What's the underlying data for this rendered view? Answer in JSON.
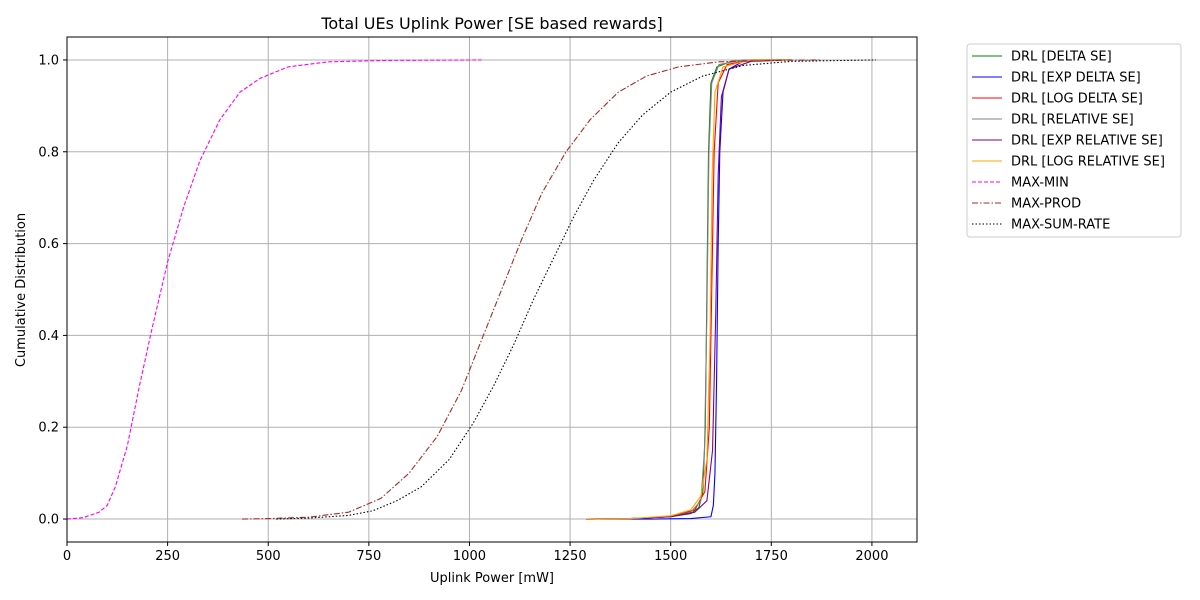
{
  "chart_data": {
    "type": "line",
    "title": "Total UEs Uplink Power [SE based rewards]",
    "xlabel": "Uplink Power [mW]",
    "ylabel": "Cumulative Distribution",
    "xlim": [
      0,
      2112
    ],
    "ylim": [
      -0.05,
      1.05
    ],
    "xticks": [
      0,
      250,
      500,
      750,
      1000,
      1250,
      1500,
      1750,
      2000
    ],
    "yticks": [
      0.0,
      0.2,
      0.4,
      0.6,
      0.8,
      1.0
    ],
    "xtick_labels": [
      "0",
      "250",
      "500",
      "750",
      "1000",
      "1250",
      "1500",
      "1750",
      "2000"
    ],
    "ytick_labels": [
      "0.0",
      "0.2",
      "0.4",
      "0.6",
      "0.8",
      "1.0"
    ],
    "grid": true,
    "legend_position": "outside-right-top",
    "series": [
      {
        "name": "DRL [DELTA SE]",
        "color": "#008000",
        "dash": "solid",
        "points": [
          [
            1290,
            0
          ],
          [
            1400,
            0.001
          ],
          [
            1500,
            0.005
          ],
          [
            1550,
            0.012
          ],
          [
            1570,
            0.025
          ],
          [
            1580,
            0.06
          ],
          [
            1586,
            0.2
          ],
          [
            1590,
            0.5
          ],
          [
            1594,
            0.8
          ],
          [
            1600,
            0.95
          ],
          [
            1615,
            0.985
          ],
          [
            1650,
            0.997
          ],
          [
            1700,
            1.0
          ],
          [
            1800,
            1.0
          ]
        ]
      },
      {
        "name": "DRL [EXP DELTA SE]",
        "color": "#0000ff",
        "dash": "solid",
        "points": [
          [
            1290,
            0
          ],
          [
            1450,
            0
          ],
          [
            1550,
            0.001
          ],
          [
            1600,
            0.005
          ],
          [
            1606,
            0.03
          ],
          [
            1610,
            0.1
          ],
          [
            1614,
            0.3
          ],
          [
            1618,
            0.6
          ],
          [
            1622,
            0.8
          ],
          [
            1630,
            0.93
          ],
          [
            1645,
            0.98
          ],
          [
            1680,
            0.997
          ],
          [
            1750,
            1.0
          ],
          [
            1800,
            1.0
          ]
        ]
      },
      {
        "name": "DRL [LOG DELTA SE]",
        "color": "#ff0000",
        "dash": "solid",
        "points": [
          [
            1290,
            0
          ],
          [
            1400,
            0.001
          ],
          [
            1500,
            0.005
          ],
          [
            1560,
            0.02
          ],
          [
            1585,
            0.06
          ],
          [
            1596,
            0.2
          ],
          [
            1602,
            0.5
          ],
          [
            1608,
            0.8
          ],
          [
            1618,
            0.95
          ],
          [
            1640,
            0.99
          ],
          [
            1700,
            1.0
          ],
          [
            1800,
            1.0
          ]
        ]
      },
      {
        "name": "DRL [RELATIVE SE]",
        "color": "#808080",
        "dash": "solid",
        "points": [
          [
            1290,
            0
          ],
          [
            1400,
            0.001
          ],
          [
            1500,
            0.005
          ],
          [
            1550,
            0.015
          ],
          [
            1575,
            0.04
          ],
          [
            1584,
            0.15
          ],
          [
            1590,
            0.45
          ],
          [
            1595,
            0.8
          ],
          [
            1602,
            0.95
          ],
          [
            1620,
            0.99
          ],
          [
            1680,
            1.0
          ],
          [
            1800,
            1.0
          ]
        ]
      },
      {
        "name": "DRL [EXP RELATIVE SE]",
        "color": "#800080",
        "dash": "solid",
        "points": [
          [
            1290,
            0
          ],
          [
            1400,
            0.001
          ],
          [
            1500,
            0.005
          ],
          [
            1560,
            0.015
          ],
          [
            1590,
            0.04
          ],
          [
            1604,
            0.15
          ],
          [
            1612,
            0.45
          ],
          [
            1618,
            0.75
          ],
          [
            1626,
            0.92
          ],
          [
            1645,
            0.98
          ],
          [
            1700,
            0.997
          ],
          [
            1800,
            1.0
          ]
        ]
      },
      {
        "name": "DRL [LOG RELATIVE SE]",
        "color": "#ffa500",
        "dash": "solid",
        "points": [
          [
            1290,
            0
          ],
          [
            1400,
            0.001
          ],
          [
            1500,
            0.007
          ],
          [
            1550,
            0.02
          ],
          [
            1575,
            0.05
          ],
          [
            1590,
            0.13
          ],
          [
            1598,
            0.4
          ],
          [
            1603,
            0.75
          ],
          [
            1610,
            0.93
          ],
          [
            1630,
            0.985
          ],
          [
            1700,
            1.0
          ],
          [
            1800,
            1.0
          ]
        ]
      },
      {
        "name": "MAX-MIN",
        "color": "#ff00ff",
        "dash": "dashed",
        "points": [
          [
            0,
            0
          ],
          [
            40,
            0.003
          ],
          [
            80,
            0.015
          ],
          [
            100,
            0.03
          ],
          [
            120,
            0.07
          ],
          [
            150,
            0.16
          ],
          [
            180,
            0.29
          ],
          [
            210,
            0.41
          ],
          [
            250,
            0.56
          ],
          [
            290,
            0.68
          ],
          [
            330,
            0.78
          ],
          [
            380,
            0.87
          ],
          [
            430,
            0.93
          ],
          [
            480,
            0.96
          ],
          [
            550,
            0.985
          ],
          [
            650,
            0.996
          ],
          [
            800,
            0.999
          ],
          [
            1030,
            1.0
          ]
        ]
      },
      {
        "name": "MAX-PROD",
        "color": "#a52a2a",
        "dash": "dashdot",
        "points": [
          [
            435,
            0
          ],
          [
            500,
            0.001
          ],
          [
            600,
            0.004
          ],
          [
            700,
            0.015
          ],
          [
            780,
            0.045
          ],
          [
            850,
            0.1
          ],
          [
            920,
            0.18
          ],
          [
            980,
            0.28
          ],
          [
            1030,
            0.39
          ],
          [
            1080,
            0.5
          ],
          [
            1130,
            0.61
          ],
          [
            1180,
            0.71
          ],
          [
            1240,
            0.8
          ],
          [
            1300,
            0.87
          ],
          [
            1370,
            0.93
          ],
          [
            1440,
            0.965
          ],
          [
            1520,
            0.985
          ],
          [
            1620,
            0.996
          ],
          [
            1750,
            0.999
          ],
          [
            1870,
            1.0
          ]
        ]
      },
      {
        "name": "MAX-SUM-RATE",
        "color": "#000000",
        "dash": "dotted",
        "points": [
          [
            520,
            0
          ],
          [
            600,
            0.002
          ],
          [
            700,
            0.008
          ],
          [
            760,
            0.018
          ],
          [
            820,
            0.04
          ],
          [
            880,
            0.07
          ],
          [
            950,
            0.13
          ],
          [
            1010,
            0.21
          ],
          [
            1060,
            0.29
          ],
          [
            1110,
            0.38
          ],
          [
            1160,
            0.48
          ],
          [
            1210,
            0.57
          ],
          [
            1260,
            0.66
          ],
          [
            1310,
            0.74
          ],
          [
            1370,
            0.82
          ],
          [
            1430,
            0.88
          ],
          [
            1500,
            0.93
          ],
          [
            1580,
            0.965
          ],
          [
            1680,
            0.988
          ],
          [
            1800,
            0.997
          ],
          [
            2010,
            1.0
          ]
        ]
      }
    ]
  }
}
